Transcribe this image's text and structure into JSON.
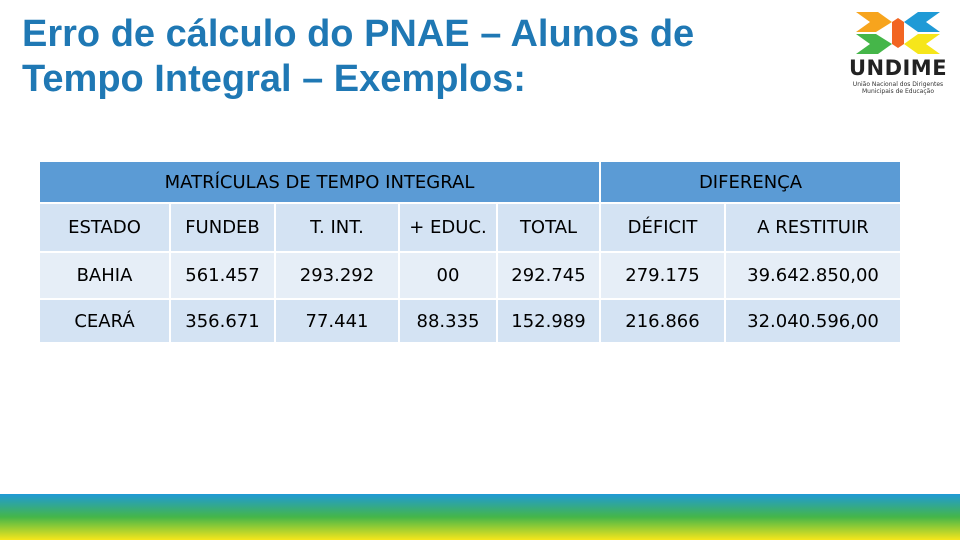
{
  "slide": {
    "title_line1": "Erro de cálculo do PNAE – Alunos de",
    "title_line2": "Tempo Integral – Exemplos:"
  },
  "logo": {
    "wordmark": "UNDIME",
    "subtitle_line1": "União Nacional dos Dirigentes",
    "subtitle_line2": "Municipais de Educação",
    "colors": [
      "#f7a41d",
      "#f26522",
      "#45b649",
      "#1f9ad6",
      "#f6e61b"
    ]
  },
  "table": {
    "group_headers": {
      "matriculas": "MATRÍCULAS DE TEMPO INTEGRAL",
      "diferenca": "DIFERENÇA"
    },
    "columns": {
      "estado": "ESTADO",
      "fundeb": "FUNDEB",
      "t_int": "T. INT.",
      "educ": "+ EDUC.",
      "total": "TOTAL",
      "deficit": "DÉFICIT",
      "restituir": "A RESTITUIR"
    },
    "rows": [
      {
        "estado": "BAHIA",
        "fundeb": "561.457",
        "t_int": "293.292",
        "educ": "00",
        "total": "292.745",
        "deficit": "279.175",
        "restituir": "39.642.850,00"
      },
      {
        "estado": "CEARÁ",
        "fundeb": "356.671",
        "t_int": "77.441",
        "educ": "88.335",
        "total": "152.989",
        "deficit": "216.866",
        "restituir": "32.040.596,00"
      }
    ]
  },
  "footer_stripe": {
    "colors": [
      "#1f9ad6",
      "#45b649",
      "#f6e61b"
    ]
  }
}
